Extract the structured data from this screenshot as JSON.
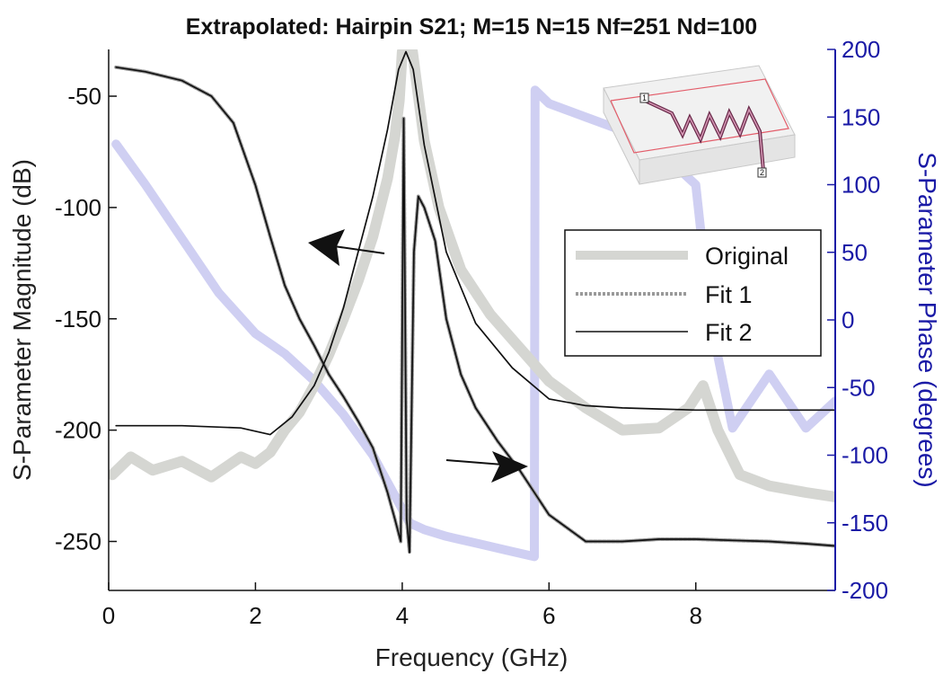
{
  "chart_data": {
    "type": "line",
    "title": "Extrapolated: Hairpin S21; M=15 N=15 Nf=251 Nd=100",
    "xlabel": "Frequency (GHz)",
    "ylabel": "S-Parameter Magnitude (dB)",
    "ylabel_right": "S-Parameter Phase (degrees)",
    "xlim": [
      0,
      9.9
    ],
    "ylim": [
      -272,
      -29
    ],
    "ylim_right": [
      -200,
      200
    ],
    "xticks": [
      0,
      2,
      4,
      6,
      8
    ],
    "yticks": [
      -50,
      -100,
      -150,
      -200,
      -250
    ],
    "yticks_right": [
      200,
      150,
      100,
      50,
      0,
      -50,
      -100,
      -150,
      -200
    ],
    "grid": false,
    "legend": {
      "position": "right",
      "entries": [
        "Original",
        "Fit 1",
        "Fit 2"
      ]
    },
    "colors": {
      "original_magnitude": "#d5d6d2",
      "original_phase": "#cfcff2",
      "fit1": "#9a9a9a",
      "fit2": "#111111",
      "right_axis": "#1a1aa6",
      "annotation_arrow": "#111111"
    },
    "series": [
      {
        "name": "Original",
        "role": "magnitude",
        "x": [
          0.05,
          0.3,
          0.6,
          1.0,
          1.4,
          1.8,
          2.0,
          2.2,
          2.4,
          2.6,
          2.8,
          3.0,
          3.2,
          3.4,
          3.6,
          3.8,
          3.9,
          3.96,
          4.0,
          4.02,
          4.06,
          4.1,
          4.14,
          4.2,
          4.3,
          4.5,
          4.8,
          5.2,
          5.6,
          6.0,
          6.5,
          7.0,
          7.5,
          7.9,
          8.1,
          8.3,
          8.6,
          9.0,
          9.5,
          9.9
        ],
        "values": [
          -220,
          -212,
          -218,
          -214,
          -221,
          -212,
          -215,
          -210,
          -200,
          -192,
          -180,
          -166,
          -150,
          -133,
          -113,
          -87,
          -68,
          -52,
          -30,
          -30,
          -30,
          -30,
          -30,
          -45,
          -70,
          -100,
          -128,
          -148,
          -163,
          -178,
          -190,
          -200,
          -199,
          -190,
          -180,
          -200,
          -220,
          -225,
          -228,
          -230
        ]
      },
      {
        "name": "Original",
        "role": "phase",
        "x": [
          0.1,
          0.5,
          1.0,
          1.5,
          2.0,
          2.4,
          2.8,
          3.2,
          3.6,
          3.8,
          4.0,
          4.1,
          4.3,
          4.6,
          5.0,
          5.4,
          5.8,
          5.81,
          6.0,
          6.5,
          7.0,
          7.5,
          7.8,
          8.0,
          8.2,
          8.5,
          9.0,
          9.5,
          9.9
        ],
        "values": [
          130,
          100,
          60,
          20,
          -10,
          -25,
          -45,
          -70,
          -100,
          -120,
          -140,
          -150,
          -155,
          -160,
          -165,
          -170,
          -175,
          170,
          160,
          150,
          140,
          130,
          110,
          100,
          0,
          -80,
          -40,
          -80,
          -60
        ]
      },
      {
        "name": "Fit 1",
        "x": [
          0.1,
          0.5,
          1.0,
          1.4,
          1.7,
          2.0,
          2.2,
          2.4,
          2.6,
          2.8,
          3.0,
          3.2,
          3.4,
          3.6,
          3.8,
          3.9,
          3.98,
          4.02,
          4.06,
          4.1,
          4.16,
          4.22,
          4.3,
          4.45,
          4.6,
          4.8,
          5.0,
          5.3,
          5.6,
          6.0,
          6.5,
          7.0,
          7.5,
          8.0,
          8.5,
          9.0,
          9.5,
          9.9
        ],
        "values": [
          -37,
          -39,
          -43,
          -50,
          -62,
          -90,
          -113,
          -135,
          -150,
          -162,
          -175,
          -185,
          -196,
          -208,
          -228,
          -240,
          -250,
          -60,
          -240,
          -255,
          -120,
          -95,
          -100,
          -115,
          -150,
          -175,
          -190,
          -205,
          -218,
          -238,
          -250,
          -250,
          -249,
          -249,
          -249.5,
          -250,
          -251,
          -252
        ]
      },
      {
        "name": "Fit 2",
        "x": [
          0.1,
          0.5,
          1.0,
          1.4,
          1.7,
          2.0,
          2.2,
          2.4,
          2.6,
          2.8,
          3.0,
          3.2,
          3.4,
          3.6,
          3.8,
          3.9,
          3.98,
          4.02,
          4.06,
          4.1,
          4.16,
          4.22,
          4.3,
          4.45,
          4.6,
          4.8,
          5.0,
          5.3,
          5.6,
          6.0,
          6.5,
          7.0,
          7.5,
          8.0,
          8.5,
          9.0,
          9.5,
          9.9
        ],
        "values": [
          -37,
          -39,
          -43,
          -50,
          -62,
          -90,
          -113,
          -135,
          -150,
          -162,
          -175,
          -185,
          -196,
          -208,
          -228,
          -240,
          -250,
          -60,
          -240,
          -255,
          -120,
          -95,
          -100,
          -115,
          -150,
          -175,
          -190,
          -205,
          -218,
          -238,
          -250,
          -250,
          -249,
          -249,
          -249.5,
          -250,
          -251,
          -252
        ]
      },
      {
        "name": "Fit 2",
        "role": "phase-fit",
        "x": [
          0.1,
          1.0,
          1.8,
          2.2,
          2.5,
          2.8,
          3.0,
          3.2,
          3.4,
          3.6,
          3.8,
          3.95,
          4.05,
          4.15,
          4.3,
          4.6,
          5.0,
          5.5,
          6.0,
          6.5,
          7.0,
          7.5,
          8.0,
          8.5,
          9.0,
          9.9
        ],
        "values": [
          -198,
          -198,
          -199,
          -202,
          -194,
          -180,
          -165,
          -145,
          -120,
          -95,
          -65,
          -38,
          -30,
          -38,
          -72,
          -120,
          -152,
          -172,
          -186,
          -189,
          -190,
          -190.5,
          -191,
          -191,
          -191,
          -191
        ]
      }
    ],
    "annotations": [
      "arrow: magnitude to left axis",
      "arrow: phase to right axis",
      "inset: hairpin filter layout, ports 1 and 2"
    ],
    "inset_port_labels": [
      "1",
      "2"
    ]
  }
}
